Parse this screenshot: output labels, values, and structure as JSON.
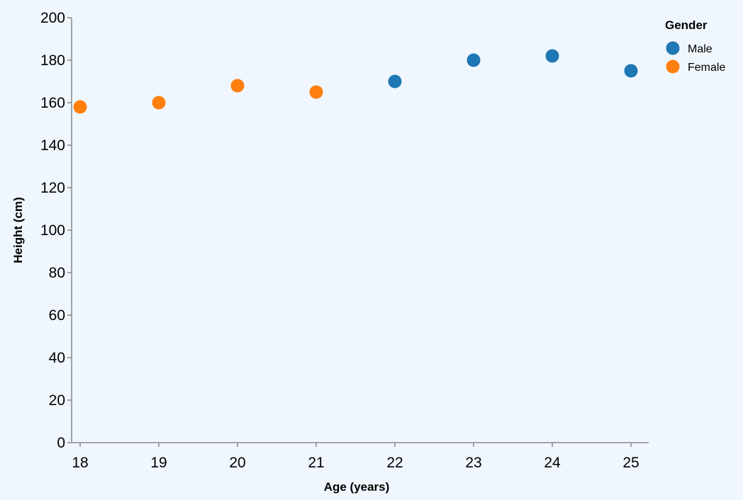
{
  "chart_data": {
    "type": "scatter",
    "title": "",
    "xlabel": "Age (years)",
    "ylabel": "Height (cm)",
    "xlim": [
      18,
      25
    ],
    "ylim": [
      0,
      200
    ],
    "x_ticks": [
      18,
      19,
      20,
      21,
      22,
      23,
      24,
      25
    ],
    "y_ticks": [
      0,
      20,
      40,
      60,
      80,
      100,
      120,
      140,
      160,
      180,
      200
    ],
    "grid": false,
    "legend": {
      "title": "Gender",
      "position": "top-right"
    },
    "series": [
      {
        "name": "Male",
        "color": "#1f77b4",
        "points": [
          {
            "x": 22,
            "y": 170
          },
          {
            "x": 23,
            "y": 180
          },
          {
            "x": 24,
            "y": 182
          },
          {
            "x": 25,
            "y": 175
          }
        ]
      },
      {
        "name": "Female",
        "color": "#ff7f0e",
        "points": [
          {
            "x": 18,
            "y": 158
          },
          {
            "x": 19,
            "y": 160
          },
          {
            "x": 20,
            "y": 168
          },
          {
            "x": 21,
            "y": 165
          }
        ]
      }
    ]
  }
}
